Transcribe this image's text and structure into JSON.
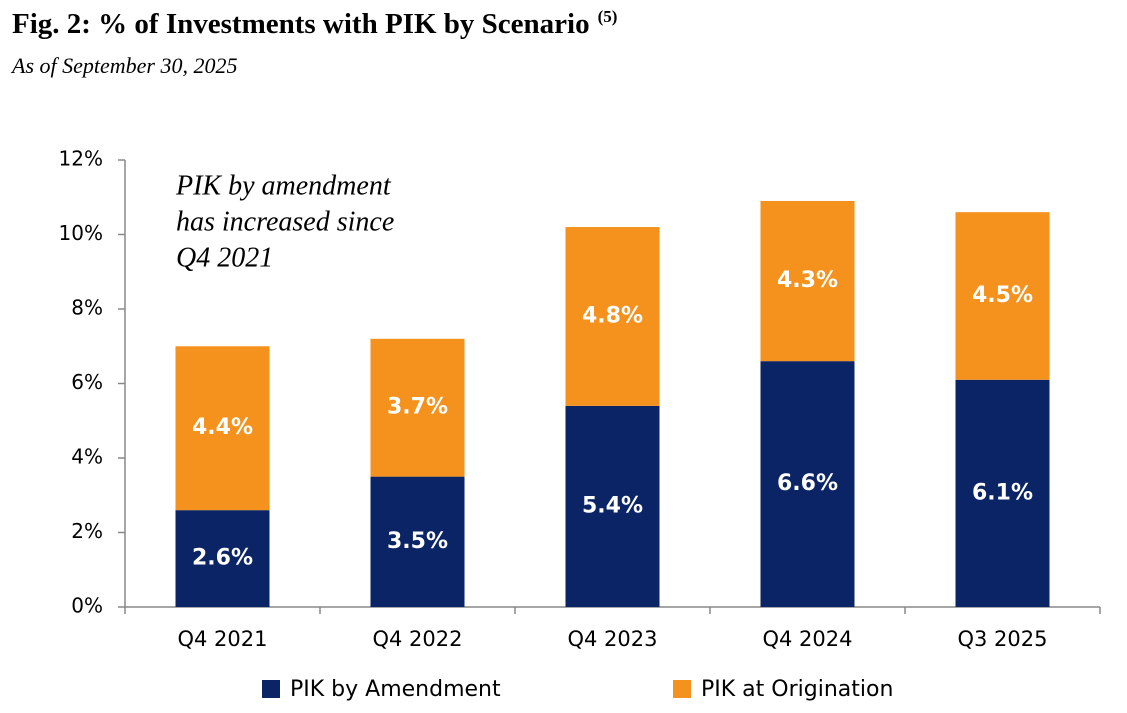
{
  "chart_data": {
    "type": "stacked_bar",
    "title": "Fig. 2: % of Investments with PIK by Scenario",
    "title_note": "(5)",
    "subtitle": "As of September 30, 2025",
    "annotation": [
      "PIK by amendment",
      "has increased since",
      "Q4 2021"
    ],
    "categories": [
      "Q4 2021",
      "Q4 2022",
      "Q4 2023",
      "Q4 2024",
      "Q3 2025"
    ],
    "series": [
      {
        "name": "PIK by Amendment",
        "color": "#0b2466",
        "values": [
          2.6,
          3.5,
          5.4,
          6.6,
          6.1
        ],
        "value_labels": [
          "2.6%",
          "3.5%",
          "5.4%",
          "6.6%",
          "6.1%"
        ]
      },
      {
        "name": "PIK at Origination",
        "color": "#f5921e",
        "values": [
          4.4,
          3.7,
          4.8,
          4.3,
          4.5
        ],
        "value_labels": [
          "4.4%",
          "3.7%",
          "4.8%",
          "4.3%",
          "4.5%"
        ]
      }
    ],
    "ylim": [
      0,
      12
    ],
    "yticks": [
      {
        "value": 0,
        "label": "0%"
      },
      {
        "value": 2,
        "label": "2%"
      },
      {
        "value": 4,
        "label": "4%"
      },
      {
        "value": 6,
        "label": "6%"
      },
      {
        "value": 8,
        "label": "8%"
      },
      {
        "value": 10,
        "label": "10%"
      },
      {
        "value": 12,
        "label": "12%"
      }
    ],
    "grid": false,
    "legend": "bottom"
  }
}
